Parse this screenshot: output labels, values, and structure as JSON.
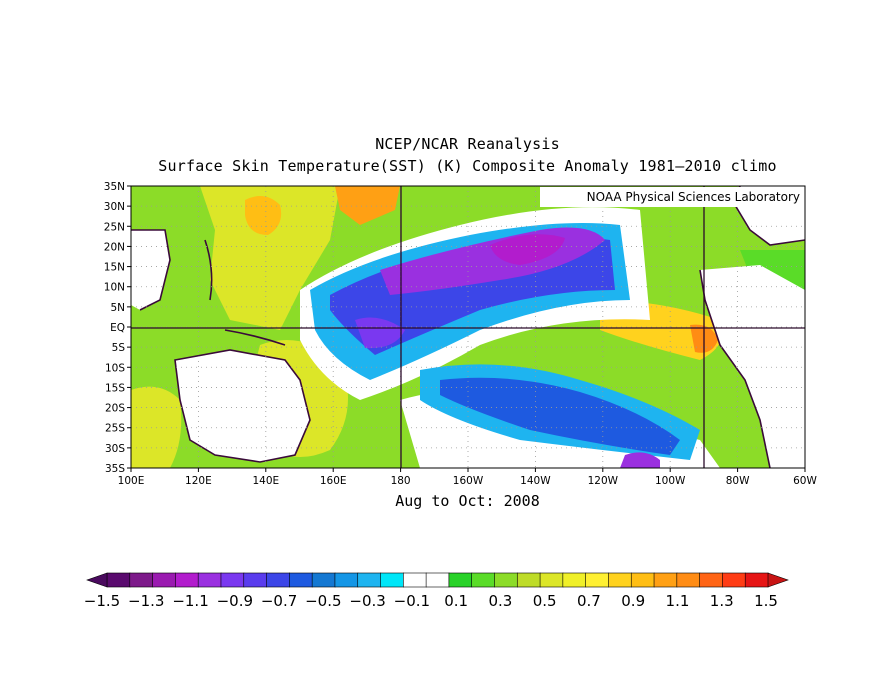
{
  "header": {
    "title": "NCEP/NCAR Reanalysis",
    "subtitle": "Surface Skin Temperature(SST) (K) Composite Anomaly 1981–2010 climo"
  },
  "credit": "NOAA Physical Sciences Laboratory",
  "period_label": "Aug to Oct: 2008",
  "map": {
    "lat_ticks": [
      "35N",
      "30N",
      "25N",
      "20N",
      "15N",
      "10N",
      "5N",
      "EQ",
      "5S",
      "10S",
      "15S",
      "20S",
      "25S",
      "30S",
      "35S"
    ],
    "lon_ticks": [
      "100E",
      "120E",
      "140E",
      "160E",
      "180",
      "160W",
      "140W",
      "120W",
      "100W",
      "80W",
      "60W"
    ],
    "reference_lines": [
      "EQ",
      "180",
      "90W"
    ],
    "gridlines": "dotted"
  },
  "colorbar": {
    "labels": [
      "−1.5",
      "−1.3",
      "−1.1",
      "−0.9",
      "−0.7",
      "−0.5",
      "−0.3",
      "−0.1",
      "0.1",
      "0.3",
      "0.5",
      "0.7",
      "0.9",
      "1.1",
      "1.3",
      "1.5"
    ],
    "colors": [
      "#5a0a6e",
      "#7d1a8a",
      "#9a1ab0",
      "#b21ccd",
      "#9a30e0",
      "#7a38f0",
      "#5a3cee",
      "#3c46e8",
      "#1e5ae0",
      "#1478d2",
      "#1496e6",
      "#1eb4f0",
      "#00e6f8",
      "#ffffff",
      "#ffffff",
      "#28d228",
      "#5adc28",
      "#8cdc28",
      "#bedc28",
      "#dce628",
      "#f0f028",
      "#fff032",
      "#ffd21e",
      "#ffbe14",
      "#ffa014",
      "#ff8c14",
      "#ff6414",
      "#ff3c14",
      "#e61414"
    ],
    "under_color": "#4a0a5e",
    "over_color": "#c81414"
  },
  "anomaly_regions": {
    "strong_negative": "#9a30e0",
    "negative": "#3c46e8",
    "weak_negative": "#1eb4f0",
    "near_zero": "#ffffff",
    "weak_positive": "#5adc28",
    "positive": "#dce628",
    "strong_positive": "#ffa014"
  }
}
